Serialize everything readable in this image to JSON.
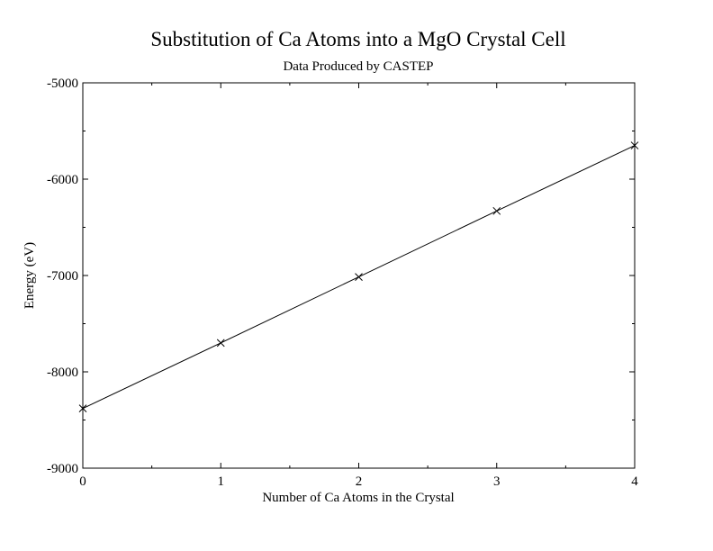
{
  "chart_data": {
    "type": "line",
    "title": "Substitution of Ca Atoms into a MgO Crystal Cell",
    "subtitle": "Data Produced by CASTEP",
    "xlabel": "Number of Ca Atoms in the Crystal",
    "ylabel": "Energy (eV)",
    "xlim": [
      0,
      4
    ],
    "ylim": [
      -9000,
      -5000
    ],
    "x_ticks": [
      0,
      1,
      2,
      3,
      4
    ],
    "x_tick_labels": [
      "0",
      "1",
      "2",
      "3",
      "4"
    ],
    "y_ticks": [
      -9000,
      -8000,
      -7000,
      -6000,
      -5000
    ],
    "y_tick_labels": [
      "-9000",
      "-8000",
      "-7000",
      "-6000",
      "-5000"
    ],
    "x_minor_step": 0.5,
    "y_minor_step": 500,
    "grid": false,
    "marker": "x",
    "colors": {
      "line": "#000000",
      "marker": "#000000",
      "frame": "#000000"
    },
    "series": [
      {
        "x": [
          0,
          1,
          2,
          3,
          4
        ],
        "values": [
          -8380,
          -7700,
          -7015,
          -6330,
          -5650
        ]
      }
    ]
  }
}
